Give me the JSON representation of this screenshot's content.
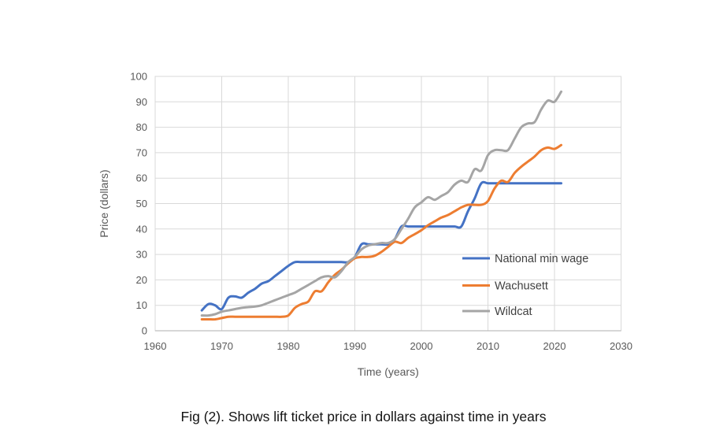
{
  "figure": {
    "caption": "Fig (2). Shows lift ticket price in dollars against time in years"
  },
  "chart_data": {
    "type": "line",
    "title": "",
    "xlabel": "Time (years)",
    "ylabel": "Price (dollars)",
    "xlim": [
      1960,
      2030
    ],
    "ylim": [
      0,
      100
    ],
    "xticks": [
      1960,
      1970,
      1980,
      1990,
      2000,
      2010,
      2020,
      2030
    ],
    "yticks": [
      0,
      10,
      20,
      30,
      40,
      50,
      60,
      70,
      80,
      90,
      100
    ],
    "grid": true,
    "smoothed_lines": true,
    "legend_position": "inside lower right",
    "x": [
      1967,
      1968,
      1969,
      1970,
      1971,
      1972,
      1973,
      1974,
      1975,
      1976,
      1977,
      1978,
      1979,
      1980,
      1981,
      1982,
      1983,
      1984,
      1985,
      1986,
      1987,
      1988,
      1989,
      1990,
      1991,
      1992,
      1993,
      1994,
      1995,
      1996,
      1997,
      1998,
      1999,
      2000,
      2001,
      2002,
      2003,
      2004,
      2005,
      2006,
      2007,
      2008,
      2009,
      2010,
      2011,
      2012,
      2013,
      2014,
      2015,
      2016,
      2017,
      2018,
      2019,
      2020,
      2021
    ],
    "series": [
      {
        "name": "National min wage",
        "color": "#4472C4",
        "values": [
          8,
          10.5,
          10,
          8.5,
          13,
          13.5,
          13,
          15,
          16.5,
          18.5,
          19.5,
          21.5,
          23.5,
          25.5,
          27,
          27,
          27,
          27,
          27,
          27,
          27,
          27,
          27,
          29,
          34,
          34,
          34,
          34,
          34,
          36,
          41,
          41,
          41,
          41,
          41,
          41,
          41,
          41,
          41,
          41,
          47,
          52,
          58,
          58,
          58,
          58,
          58,
          58,
          58,
          58,
          58,
          58,
          58,
          58,
          58
        ]
      },
      {
        "name": "Wachusett",
        "color": "#ED7D31",
        "values": [
          4.5,
          4.5,
          4.5,
          5,
          5.5,
          5.5,
          5.5,
          5.5,
          5.5,
          5.5,
          5.5,
          5.5,
          5.5,
          6,
          9,
          10.5,
          11.5,
          15.5,
          15.5,
          19,
          22,
          24,
          26.5,
          28.5,
          29,
          29,
          29.5,
          31,
          33,
          35,
          34.5,
          36.5,
          38,
          39.5,
          41.5,
          43,
          44.5,
          45.5,
          47,
          48.5,
          49.5,
          49.5,
          49.5,
          51,
          56,
          59,
          58.5,
          62,
          64.5,
          66.5,
          68.5,
          71,
          72,
          71.5,
          73
        ]
      },
      {
        "name": "Wildcat",
        "color": "#A5A5A5",
        "values": [
          6,
          6,
          6.5,
          7.5,
          8,
          8.5,
          9,
          9.3,
          9.5,
          10,
          11,
          12,
          13,
          14,
          15,
          16.5,
          18,
          19.5,
          21,
          21.5,
          21,
          23.5,
          27,
          29,
          32,
          33.5,
          34,
          34.5,
          34.5,
          36,
          40,
          44,
          48.5,
          50.5,
          52.5,
          51.5,
          53,
          54.5,
          57.5,
          59,
          58.5,
          63.5,
          63,
          69,
          71,
          71,
          71,
          75.5,
          80,
          81.5,
          82,
          87,
          90.5,
          90,
          94
        ]
      }
    ]
  },
  "colors": {
    "background": "#FFFFFF",
    "gridline": "#D9D9D9",
    "plot_border": "#D9D9D9",
    "axis_line": "#BFBFBF",
    "tick_label": "#595959",
    "axis_title": "#595959",
    "legend_text": "#404040",
    "caption_text": "#141414"
  }
}
